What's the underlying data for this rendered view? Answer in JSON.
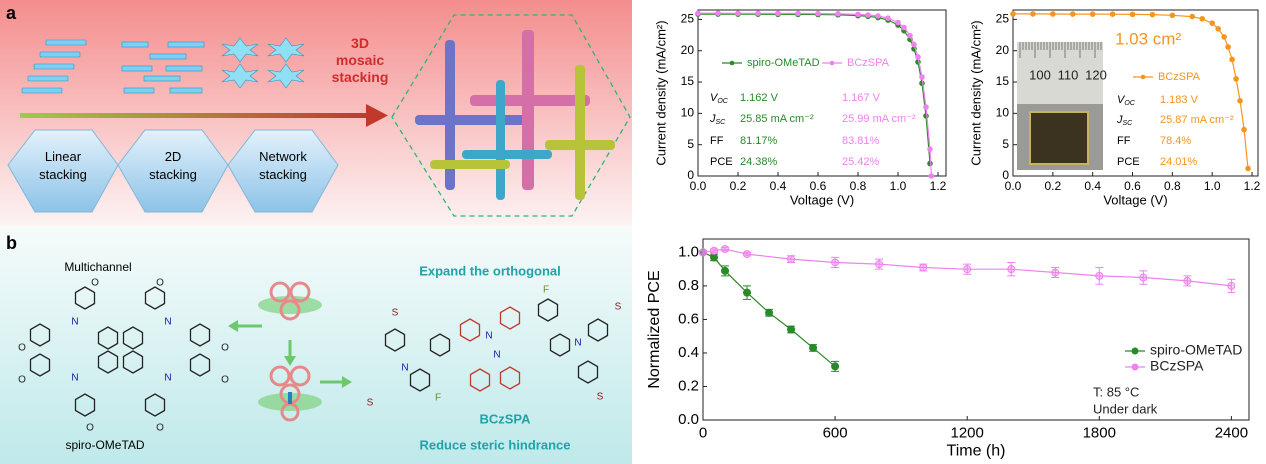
{
  "panel_a": {
    "label": "a",
    "stacking": [
      [
        "Linear",
        "stacking"
      ],
      [
        "2D",
        "stacking"
      ],
      [
        "Network",
        "stacking"
      ]
    ],
    "mosaic": [
      "3D",
      "mosaic",
      "stacking"
    ]
  },
  "panel_b": {
    "label": "b",
    "multichannel": "Multichannel",
    "spiro_name": "spiro-OMeTAD",
    "expand": "Expand the orthogonal",
    "bczspa_name": "BCzSPA",
    "reduce": "Reduce steric hindrance",
    "spiro_atoms": [
      "O",
      "N",
      "O",
      "O",
      "N",
      "O",
      "O",
      "N",
      "O",
      "O",
      "N",
      "O"
    ],
    "bczspa_atoms": [
      "S",
      "N",
      "S",
      "F",
      "N",
      "N",
      "F",
      "N",
      "S",
      "S"
    ]
  },
  "chart_data": [
    {
      "type": "line",
      "x_label": "Voltage (V)",
      "y_label": "Current density (mA/cm²)",
      "xlim": [
        0,
        1.24
      ],
      "xticks": [
        {
          "value": 0,
          "label": "0.0"
        },
        0.2,
        0.4,
        0.6,
        0.8,
        {
          "value": 1,
          "label": "1.0"
        },
        1.2
      ],
      "ylim": [
        0,
        26.5
      ],
      "yticks": [
        0,
        5,
        10,
        15,
        20,
        25
      ],
      "series": [
        {
          "name": "spiro-OMeTAD",
          "color": "#2a8a2a",
          "x": [
            0,
            0.1,
            0.2,
            0.3,
            0.4,
            0.5,
            0.6,
            0.7,
            0.8,
            0.85,
            0.9,
            0.95,
            1.0,
            1.03,
            1.06,
            1.08,
            1.1,
            1.12,
            1.14,
            1.16
          ],
          "values": [
            25.85,
            25.85,
            25.84,
            25.83,
            25.82,
            25.8,
            25.78,
            25.74,
            25.6,
            25.5,
            25.3,
            24.9,
            24.1,
            23.2,
            21.8,
            20.3,
            18.2,
            14.8,
            9.6,
            2.0
          ]
        },
        {
          "name": "BCzSPA",
          "color": "#ee82ee",
          "x": [
            0,
            0.1,
            0.2,
            0.3,
            0.4,
            0.5,
            0.6,
            0.7,
            0.8,
            0.85,
            0.9,
            0.95,
            1.0,
            1.03,
            1.06,
            1.08,
            1.1,
            1.12,
            1.14,
            1.16,
            1.167
          ],
          "values": [
            25.99,
            25.99,
            25.98,
            25.97,
            25.96,
            25.95,
            25.93,
            25.9,
            25.8,
            25.7,
            25.55,
            25.2,
            24.5,
            23.7,
            22.4,
            21.0,
            19.0,
            15.8,
            11.0,
            4.3,
            0.0
          ]
        }
      ],
      "table": [
        {
          "symbol": "V",
          "sub": "OC",
          "values": [
            "1.162 V",
            "1.167 V"
          ]
        },
        {
          "symbol": "J",
          "sub": "SC",
          "values": [
            "25.85 mA cm⁻²",
            "25.99 mA cm⁻²"
          ]
        },
        {
          "label": "FF",
          "values": [
            "81.17%",
            "83.81%"
          ]
        },
        {
          "label": "PCE",
          "values": [
            "24.38%",
            "25.42%"
          ]
        }
      ]
    },
    {
      "type": "line",
      "x_label": "Voltage (V)",
      "y_label": "Current density (mA/cm²)",
      "xlim": [
        0,
        1.23
      ],
      "xticks": [
        {
          "value": 0,
          "label": "0.0"
        },
        0.2,
        0.4,
        0.6,
        0.8,
        {
          "value": 1,
          "label": "1.0"
        },
        1.2
      ],
      "ylim": [
        0,
        26.5
      ],
      "yticks": [
        0,
        5,
        10,
        15,
        20,
        25
      ],
      "series": [
        {
          "name": "BCzSPA",
          "color": "#f7941d",
          "x": [
            0,
            0.1,
            0.2,
            0.3,
            0.4,
            0.5,
            0.6,
            0.7,
            0.8,
            0.9,
            0.95,
            1.0,
            1.03,
            1.06,
            1.08,
            1.1,
            1.12,
            1.14,
            1.16,
            1.18
          ],
          "values": [
            25.87,
            25.87,
            25.86,
            25.85,
            25.84,
            25.83,
            25.8,
            25.76,
            25.65,
            25.45,
            25.1,
            24.4,
            23.5,
            22.2,
            20.6,
            18.6,
            15.5,
            12.0,
            7.4,
            1.2
          ]
        }
      ],
      "table": [
        {
          "symbol": "V",
          "sub": "OC",
          "values": [
            "1.183 V"
          ]
        },
        {
          "symbol": "J",
          "sub": "SC",
          "values": [
            "25.87 mA cm⁻²"
          ]
        },
        {
          "label": "FF",
          "values": [
            "78.4%"
          ]
        },
        {
          "label": "PCE",
          "values": [
            "24.01%"
          ]
        }
      ],
      "annotations": [
        "1.03 cm²"
      ],
      "ruler_labels": [
        "100",
        "110",
        "120"
      ]
    },
    {
      "type": "line",
      "x_label": "Time (h)",
      "y_label": "Normalized PCE",
      "xlim": [
        0,
        2480
      ],
      "xticks": [
        0,
        600,
        1200,
        1800,
        2400
      ],
      "ylim": [
        0,
        1.08
      ],
      "yticks": [
        {
          "value": 0,
          "label": "0.0"
        },
        0.2,
        0.4,
        0.6,
        0.8,
        {
          "value": 1,
          "label": "1.0"
        }
      ],
      "series": [
        {
          "name": "spiro-OMeTAD",
          "color": "#2a8a2a",
          "x": [
            0,
            50,
            100,
            200,
            300,
            400,
            500,
            600
          ],
          "values": [
            1.0,
            0.97,
            0.89,
            0.76,
            0.64,
            0.54,
            0.43,
            0.32
          ],
          "errors": [
            0.01,
            0.02,
            0.03,
            0.04,
            0.02,
            0.02,
            0.02,
            0.03
          ]
        },
        {
          "name": "BCzSPA",
          "color": "#ee82ee",
          "x": [
            0,
            50,
            100,
            200,
            400,
            600,
            800,
            1000,
            1200,
            1400,
            1600,
            1800,
            2000,
            2200,
            2400
          ],
          "values": [
            1.0,
            1.01,
            1.02,
            0.99,
            0.96,
            0.94,
            0.93,
            0.91,
            0.9,
            0.9,
            0.88,
            0.86,
            0.85,
            0.83,
            0.8
          ],
          "errors": [
            0.01,
            0.01,
            0.01,
            0.01,
            0.02,
            0.03,
            0.03,
            0.02,
            0.03,
            0.04,
            0.03,
            0.05,
            0.04,
            0.03,
            0.04
          ]
        }
      ],
      "annotations": [
        "T: 85 °C",
        "Under dark"
      ]
    }
  ]
}
